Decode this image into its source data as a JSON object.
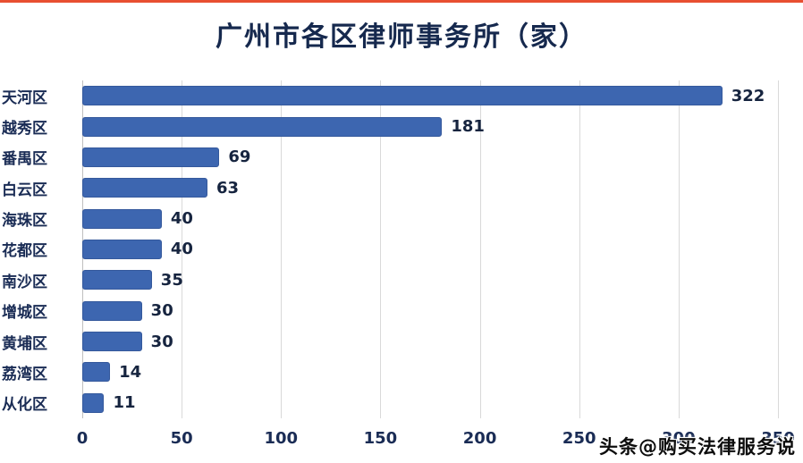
{
  "page": {
    "watermark": "头条@购买法律服务说"
  },
  "colors": {
    "bar": "#3d66b0",
    "bar_border": "#35599c",
    "title_text": "#16294e",
    "axis_text": "#1a2c55",
    "gridline": "#d9d9d9",
    "top_accent": "#e84f31"
  },
  "chart_data": {
    "type": "bar",
    "orientation": "horizontal",
    "title": "广州市各区律师事务所（家）",
    "categories": [
      "天河区",
      "越秀区",
      "番禺区",
      "白云区",
      "海珠区",
      "花都区",
      "南沙区",
      "增城区",
      "黄埔区",
      "荔湾区",
      "从化区"
    ],
    "values": [
      322,
      181,
      69,
      63,
      40,
      40,
      35,
      30,
      30,
      14,
      11
    ],
    "xlabel": "",
    "ylabel": "",
    "xlim": [
      0,
      350
    ],
    "xticks": [
      0,
      50,
      100,
      150,
      200,
      250,
      300,
      350
    ],
    "grid": true,
    "legend": false
  }
}
